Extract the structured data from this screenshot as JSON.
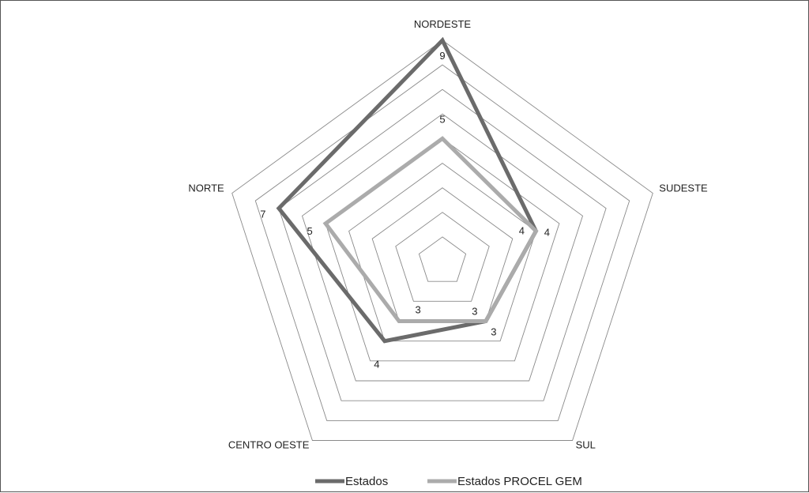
{
  "chart_data": {
    "type": "radar",
    "categories": [
      "NORDESTE",
      "SUDESTE",
      "SUL",
      "CENTRO OESTE",
      "NORTE"
    ],
    "series": [
      {
        "name": "Estados",
        "values": [
          9,
          4,
          3,
          4,
          7
        ],
        "color": "#6b6b6b"
      },
      {
        "name": "Estados PROCEL GEM",
        "values": [
          5,
          4,
          3,
          3,
          5
        ],
        "color": "#ababab"
      }
    ],
    "scale": {
      "min": 0,
      "max": 9,
      "gridlines": 9
    },
    "grid": true,
    "legend_position": "bottom"
  }
}
